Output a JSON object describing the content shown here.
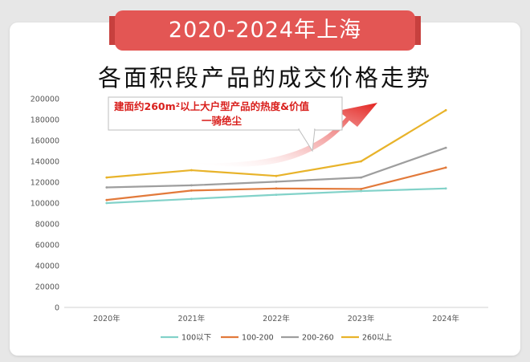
{
  "banner": {
    "title": "2020-2024年上海"
  },
  "subtitle": "各面积段产品的成交价格走势",
  "chart_data": {
    "type": "line",
    "title": "各面积段产品的成交价格走势",
    "categories": [
      "2020年",
      "2021年",
      "2022年",
      "2023年",
      "2024年"
    ],
    "ylim": [
      0,
      200000
    ],
    "yticks": [
      0,
      20000,
      40000,
      60000,
      80000,
      100000,
      120000,
      140000,
      160000,
      180000,
      200000
    ],
    "grid": false,
    "legend_position": "bottom",
    "series": [
      {
        "name": "100以下",
        "color": "#82d2c9",
        "values": [
          100000,
          104000,
          108000,
          111500,
          114000
        ]
      },
      {
        "name": "100-200",
        "color": "#e27a3b",
        "values": [
          103000,
          112000,
          114000,
          113500,
          134000
        ]
      },
      {
        "name": "200-260",
        "color": "#9e9e9e",
        "values": [
          115000,
          117000,
          120500,
          124500,
          153000
        ]
      },
      {
        "name": "260以上",
        "color": "#e8b32a",
        "values": [
          124500,
          131500,
          126000,
          140000,
          189000
        ]
      }
    ],
    "annotation": {
      "line1": "建面约260m²以上大户型产品的热度&价值",
      "line2": "一骑绝尘"
    }
  }
}
